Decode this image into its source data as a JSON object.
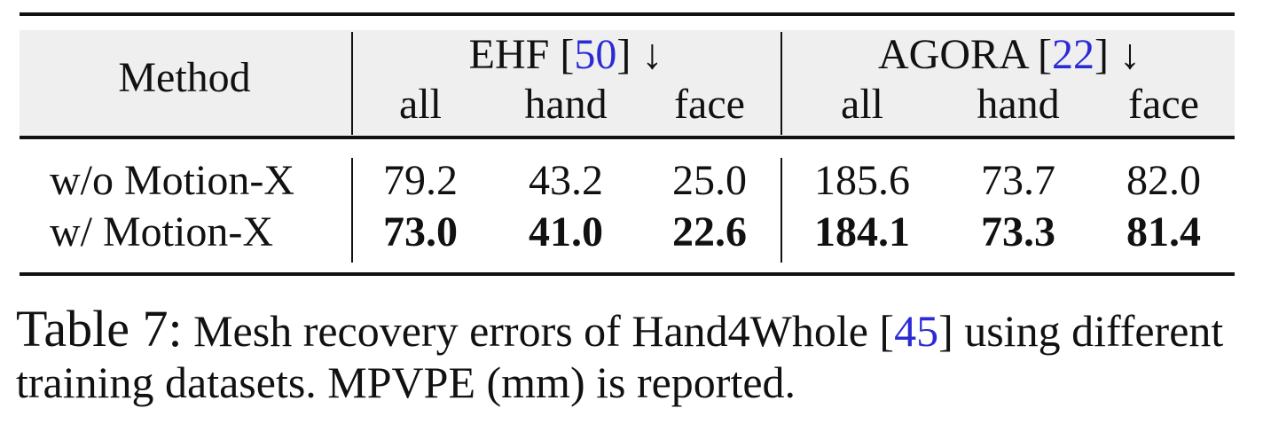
{
  "table": {
    "header": {
      "method_label": "Method",
      "groups": [
        {
          "name": "EHF",
          "cite": "50",
          "arrow": "↓",
          "columns": [
            "all",
            "hand",
            "face"
          ]
        },
        {
          "name": "AGORA",
          "cite": "22",
          "arrow": "↓",
          "columns": [
            "all",
            "hand",
            "face"
          ]
        }
      ]
    },
    "rows": [
      {
        "method": "w/o Motion-X",
        "values": [
          "79.2",
          "43.2",
          "25.0",
          "185.6",
          "73.7",
          "82.0"
        ],
        "bold": false
      },
      {
        "method": "w/ Motion-X",
        "values": [
          "73.0",
          "41.0",
          "22.6",
          "184.1",
          "73.3",
          "81.4"
        ],
        "bold": true
      }
    ]
  },
  "caption": {
    "label": "Table 7:",
    "text_before_cite": "Mesh recovery errors of Hand4Whole [",
    "cite": "45",
    "text_after_cite": "] using different training datasets. MPVPE (mm) is reported."
  }
}
